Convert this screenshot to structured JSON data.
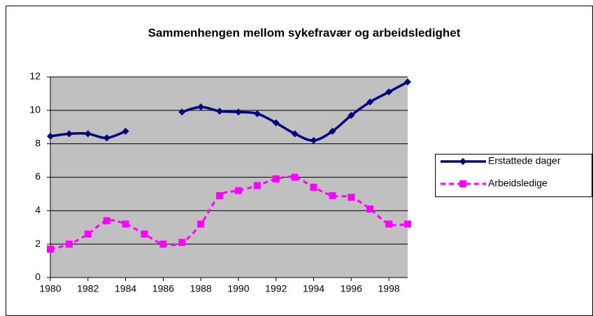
{
  "chart_data": {
    "type": "line",
    "title": "Sammenhengen mellom sykefravær og arbeidsledighet",
    "x": [
      1980,
      1981,
      1982,
      1983,
      1984,
      1985,
      1986,
      1987,
      1988,
      1989,
      1990,
      1991,
      1992,
      1993,
      1994,
      1995,
      1996,
      1997,
      1998,
      1999
    ],
    "series": [
      {
        "name": "Erstattede dager",
        "color": "#000080",
        "marker": "diamond",
        "values": [
          8.45,
          8.6,
          8.6,
          8.35,
          8.75,
          null,
          null,
          9.9,
          10.2,
          9.95,
          9.9,
          9.8,
          9.25,
          8.6,
          8.2,
          8.75,
          9.7,
          10.5,
          11.1,
          11.7
        ]
      },
      {
        "name": "Arbeidsledige",
        "color": "#ff00ff",
        "marker": "square",
        "dashed": true,
        "values": [
          1.7,
          2.0,
          2.6,
          3.4,
          3.2,
          2.6,
          2.0,
          2.1,
          3.2,
          4.9,
          5.2,
          5.5,
          5.9,
          6.0,
          5.4,
          4.9,
          4.8,
          4.1,
          3.2,
          3.2
        ]
      }
    ],
    "xlim": [
      1980,
      1999
    ],
    "xticks": [
      1980,
      1982,
      1984,
      1986,
      1988,
      1990,
      1992,
      1994,
      1996,
      1998
    ],
    "ylim": [
      0,
      12
    ],
    "yticks": [
      0,
      2,
      4,
      6,
      8,
      10,
      12
    ],
    "grid": true,
    "legend": "right"
  }
}
